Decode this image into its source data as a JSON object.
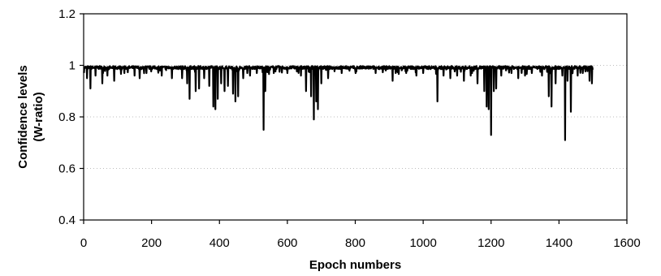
{
  "chart_data": {
    "type": "line",
    "xlabel": "Epoch numbers",
    "ylabel_lines": [
      "Confidence levels",
      "(W-ratio)"
    ],
    "xlim": [
      0,
      1600
    ],
    "ylim": [
      0.4,
      1.2
    ],
    "x_ticks": [
      0,
      200,
      400,
      600,
      800,
      1000,
      1200,
      1400,
      1600
    ],
    "y_ticks": [
      0.4,
      0.6,
      0.8,
      1.0,
      1.2
    ],
    "x_tick_labels": [
      "0",
      "200",
      "400",
      "600",
      "800",
      "1000",
      "1200",
      "1400",
      "1600"
    ],
    "y_tick_labels": [
      "0.4",
      "0.6",
      "0.8",
      "1",
      "1.2"
    ],
    "grid": "horizontal-dotted",
    "legend": "none",
    "line_color": "#000000",
    "x_range": [
      1,
      1500
    ],
    "baseline": 0.99,
    "dips": [
      [
        10,
        0.95
      ],
      [
        20,
        0.91
      ],
      [
        35,
        0.96
      ],
      [
        55,
        0.93
      ],
      [
        70,
        0.96
      ],
      [
        90,
        0.94
      ],
      [
        120,
        0.97
      ],
      [
        150,
        0.96
      ],
      [
        165,
        0.95
      ],
      [
        185,
        0.97
      ],
      [
        230,
        0.96
      ],
      [
        260,
        0.95
      ],
      [
        290,
        0.95
      ],
      [
        305,
        0.93
      ],
      [
        312,
        0.87
      ],
      [
        330,
        0.9
      ],
      [
        340,
        0.91
      ],
      [
        355,
        0.95
      ],
      [
        370,
        0.92
      ],
      [
        382,
        0.84
      ],
      [
        388,
        0.83
      ],
      [
        395,
        0.87
      ],
      [
        405,
        0.93
      ],
      [
        415,
        0.9
      ],
      [
        425,
        0.92
      ],
      [
        440,
        0.89
      ],
      [
        447,
        0.86
      ],
      [
        455,
        0.88
      ],
      [
        470,
        0.95
      ],
      [
        490,
        0.96
      ],
      [
        510,
        0.97
      ],
      [
        530,
        0.75
      ],
      [
        535,
        0.9
      ],
      [
        560,
        0.97
      ],
      [
        600,
        0.97
      ],
      [
        640,
        0.96
      ],
      [
        655,
        0.9
      ],
      [
        670,
        0.88
      ],
      [
        678,
        0.79
      ],
      [
        685,
        0.86
      ],
      [
        690,
        0.83
      ],
      [
        700,
        0.93
      ],
      [
        720,
        0.95
      ],
      [
        760,
        0.97
      ],
      [
        800,
        0.98
      ],
      [
        860,
        0.97
      ],
      [
        890,
        0.98
      ],
      [
        910,
        0.94
      ],
      [
        950,
        0.97
      ],
      [
        980,
        0.96
      ],
      [
        1000,
        0.97
      ],
      [
        1042,
        0.86
      ],
      [
        1060,
        0.96
      ],
      [
        1080,
        0.95
      ],
      [
        1100,
        0.96
      ],
      [
        1120,
        0.94
      ],
      [
        1140,
        0.96
      ],
      [
        1160,
        0.93
      ],
      [
        1180,
        0.9
      ],
      [
        1187,
        0.84
      ],
      [
        1193,
        0.83
      ],
      [
        1200,
        0.73
      ],
      [
        1208,
        0.9
      ],
      [
        1215,
        0.91
      ],
      [
        1230,
        0.96
      ],
      [
        1260,
        0.97
      ],
      [
        1280,
        0.95
      ],
      [
        1300,
        0.96
      ],
      [
        1320,
        0.97
      ],
      [
        1350,
        0.96
      ],
      [
        1370,
        0.88
      ],
      [
        1378,
        0.84
      ],
      [
        1390,
        0.93
      ],
      [
        1410,
        0.96
      ],
      [
        1418,
        0.71
      ],
      [
        1425,
        0.94
      ],
      [
        1435,
        0.82
      ],
      [
        1455,
        0.96
      ],
      [
        1470,
        0.97
      ],
      [
        1490,
        0.94
      ],
      [
        1497,
        0.93
      ]
    ]
  }
}
